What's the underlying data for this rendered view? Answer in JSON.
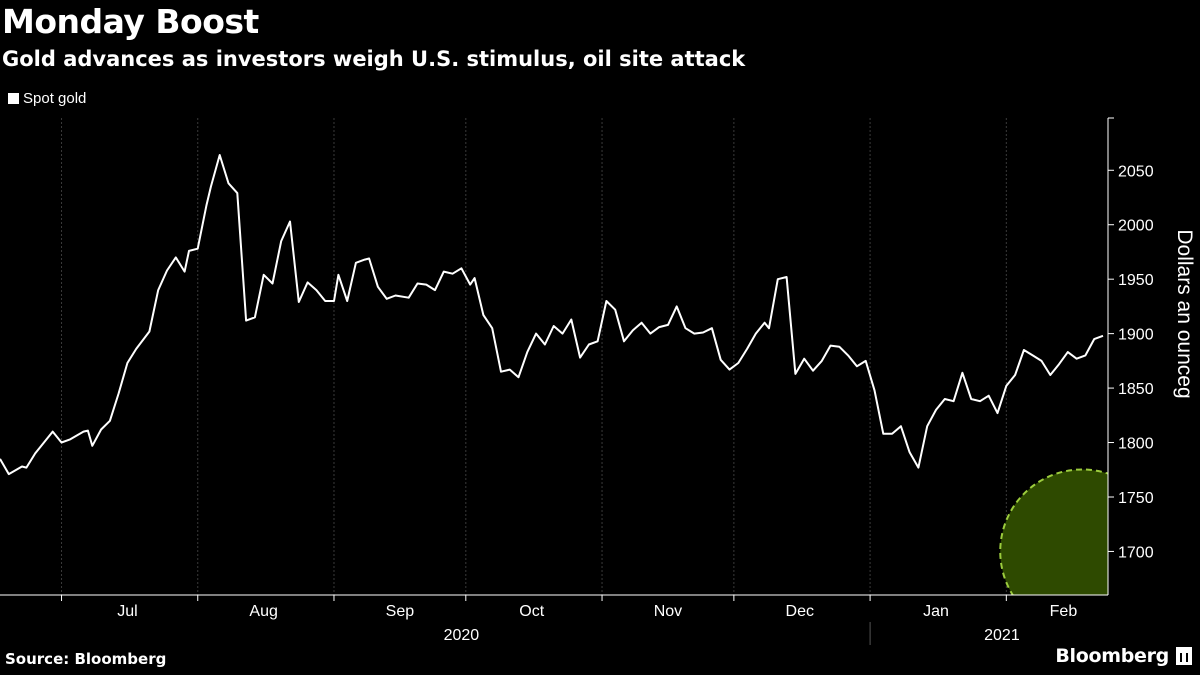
{
  "header": {
    "title": "Monday Boost",
    "subtitle": "Gold advances as investors weigh U.S. stimulus, oil site attack"
  },
  "footer": {
    "source": "Source: Bloomberg",
    "brand": "Bloomberg"
  },
  "chart_data": {
    "type": "line",
    "title": "Monday Boost",
    "subtitle": "Gold advances as investors weigh U.S. stimulus, oil site attack",
    "ylabel": "Dollars an ounceg",
    "y_axis_side": "right",
    "ylim": [
      1660,
      2098
    ],
    "yticks": [
      1700,
      1750,
      1800,
      1850,
      1900,
      1950,
      2000,
      2050
    ],
    "grid": false,
    "legend": {
      "placement": "top-left",
      "entries": [
        "Spot gold"
      ]
    },
    "x_range": [
      "2020-06-17",
      "2021-02-23"
    ],
    "month_labels": [
      {
        "label": "Jul",
        "date": "2020-07-16"
      },
      {
        "label": "Aug",
        "date": "2020-08-16"
      },
      {
        "label": "Sep",
        "date": "2020-09-16"
      },
      {
        "label": "Oct",
        "date": "2020-10-16"
      },
      {
        "label": "Nov",
        "date": "2020-11-16"
      },
      {
        "label": "Dec",
        "date": "2020-12-16"
      },
      {
        "label": "Jan",
        "date": "2021-01-16"
      },
      {
        "label": "Feb",
        "date": "2021-02-14"
      }
    ],
    "month_boundaries": [
      "2020-07-01",
      "2020-08-01",
      "2020-09-01",
      "2020-10-01",
      "2020-11-01",
      "2020-12-01",
      "2021-01-01",
      "2021-02-01",
      "2021-03-01"
    ],
    "year_labels": [
      {
        "label": "2020",
        "date": "2020-09-30"
      },
      {
        "label": "2021",
        "date": "2021-01-31"
      }
    ],
    "year_divider": "2021-01-01",
    "highlight": {
      "shape": "circle",
      "center": {
        "x": "2021-02-16",
        "y": 1700
      },
      "color": "#2e4a00",
      "border": "#9ccc3d"
    },
    "series": [
      {
        "name": "Spot gold",
        "color": "#ffffff",
        "points": [
          [
            "2020-06-17",
            1785
          ],
          [
            "2020-06-19",
            1771
          ],
          [
            "2020-06-22",
            1778
          ],
          [
            "2020-06-23",
            1777
          ],
          [
            "2020-06-25",
            1790
          ],
          [
            "2020-06-29",
            1810
          ],
          [
            "2020-07-01",
            1800
          ],
          [
            "2020-07-03",
            1803
          ],
          [
            "2020-07-06",
            1810
          ],
          [
            "2020-07-07",
            1811
          ],
          [
            "2020-07-08",
            1797
          ],
          [
            "2020-07-10",
            1812
          ],
          [
            "2020-07-12",
            1820
          ],
          [
            "2020-07-14",
            1845
          ],
          [
            "2020-07-16",
            1873
          ],
          [
            "2020-07-18",
            1886
          ],
          [
            "2020-07-21",
            1902
          ],
          [
            "2020-07-23",
            1940
          ],
          [
            "2020-07-25",
            1958
          ],
          [
            "2020-07-27",
            1970
          ],
          [
            "2020-07-29",
            1957
          ],
          [
            "2020-07-30",
            1976
          ],
          [
            "2020-08-01",
            1978
          ],
          [
            "2020-08-03",
            2018
          ],
          [
            "2020-08-04",
            2035
          ],
          [
            "2020-08-06",
            2064
          ],
          [
            "2020-08-08",
            2038
          ],
          [
            "2020-08-10",
            2029
          ],
          [
            "2020-08-12",
            1912
          ],
          [
            "2020-08-14",
            1915
          ],
          [
            "2020-08-16",
            1954
          ],
          [
            "2020-08-18",
            1946
          ],
          [
            "2020-08-20",
            1985
          ],
          [
            "2020-08-22",
            2003
          ],
          [
            "2020-08-24",
            1929
          ],
          [
            "2020-08-26",
            1947
          ],
          [
            "2020-08-28",
            1940
          ],
          [
            "2020-08-30",
            1930
          ],
          [
            "2020-09-01",
            1930
          ],
          [
            "2020-09-02",
            1954
          ],
          [
            "2020-09-04",
            1930
          ],
          [
            "2020-09-06",
            1965
          ],
          [
            "2020-09-08",
            1968
          ],
          [
            "2020-09-09",
            1969
          ],
          [
            "2020-09-11",
            1943
          ],
          [
            "2020-09-13",
            1932
          ],
          [
            "2020-09-15",
            1935
          ],
          [
            "2020-09-18",
            1933
          ],
          [
            "2020-09-20",
            1946
          ],
          [
            "2020-09-22",
            1945
          ],
          [
            "2020-09-24",
            1940
          ],
          [
            "2020-09-26",
            1957
          ],
          [
            "2020-09-28",
            1955
          ],
          [
            "2020-09-30",
            1960
          ],
          [
            "2020-10-02",
            1945
          ],
          [
            "2020-10-03",
            1951
          ],
          [
            "2020-10-05",
            1917
          ],
          [
            "2020-10-07",
            1905
          ],
          [
            "2020-10-09",
            1865
          ],
          [
            "2020-10-11",
            1867
          ],
          [
            "2020-10-13",
            1860
          ],
          [
            "2020-10-15",
            1883
          ],
          [
            "2020-10-17",
            1900
          ],
          [
            "2020-10-19",
            1890
          ],
          [
            "2020-10-21",
            1907
          ],
          [
            "2020-10-23",
            1900
          ],
          [
            "2020-10-25",
            1913
          ],
          [
            "2020-10-27",
            1878
          ],
          [
            "2020-10-29",
            1890
          ],
          [
            "2020-10-31",
            1893
          ],
          [
            "2020-11-02",
            1930
          ],
          [
            "2020-11-04",
            1922
          ],
          [
            "2020-11-06",
            1893
          ],
          [
            "2020-11-08",
            1903
          ],
          [
            "2020-11-10",
            1910
          ],
          [
            "2020-11-12",
            1900
          ],
          [
            "2020-11-14",
            1906
          ],
          [
            "2020-11-16",
            1908
          ],
          [
            "2020-11-18",
            1925
          ],
          [
            "2020-11-20",
            1905
          ],
          [
            "2020-11-22",
            1900
          ],
          [
            "2020-11-24",
            1901
          ],
          [
            "2020-11-26",
            1905
          ],
          [
            "2020-11-28",
            1876
          ],
          [
            "2020-11-30",
            1867
          ],
          [
            "2020-12-02",
            1873
          ],
          [
            "2020-12-04",
            1886
          ],
          [
            "2020-12-06",
            1900
          ],
          [
            "2020-12-08",
            1910
          ],
          [
            "2020-12-09",
            1905
          ],
          [
            "2020-12-11",
            1950
          ],
          [
            "2020-12-13",
            1952
          ],
          [
            "2020-12-15",
            1863
          ],
          [
            "2020-12-17",
            1877
          ],
          [
            "2020-12-19",
            1866
          ],
          [
            "2020-12-21",
            1875
          ],
          [
            "2020-12-23",
            1889
          ],
          [
            "2020-12-25",
            1888
          ],
          [
            "2020-12-27",
            1880
          ],
          [
            "2020-12-29",
            1870
          ],
          [
            "2020-12-31",
            1875
          ],
          [
            "2021-01-02",
            1848
          ],
          [
            "2021-01-04",
            1808
          ],
          [
            "2021-01-06",
            1808
          ],
          [
            "2021-01-08",
            1815
          ],
          [
            "2021-01-10",
            1791
          ],
          [
            "2021-01-12",
            1777
          ],
          [
            "2021-01-14",
            1815
          ],
          [
            "2021-01-16",
            1830
          ],
          [
            "2021-01-18",
            1840
          ],
          [
            "2021-01-20",
            1838
          ],
          [
            "2021-01-22",
            1864
          ],
          [
            "2021-01-24",
            1840
          ],
          [
            "2021-01-26",
            1838
          ],
          [
            "2021-01-28",
            1843
          ],
          [
            "2021-01-30",
            1827
          ],
          [
            "2021-02-01",
            1852
          ],
          [
            "2021-02-03",
            1862
          ],
          [
            "2021-02-05",
            1885
          ],
          [
            "2021-02-07",
            1880
          ],
          [
            "2021-02-09",
            1875
          ],
          [
            "2021-02-11",
            1862
          ],
          [
            "2021-02-13",
            1872
          ],
          [
            "2021-02-15",
            1883
          ],
          [
            "2021-02-17",
            1877
          ],
          [
            "2021-02-19",
            1880
          ],
          [
            "2021-02-21",
            1895
          ],
          [
            "2021-02-23",
            1898
          ]
        ]
      }
    ]
  }
}
